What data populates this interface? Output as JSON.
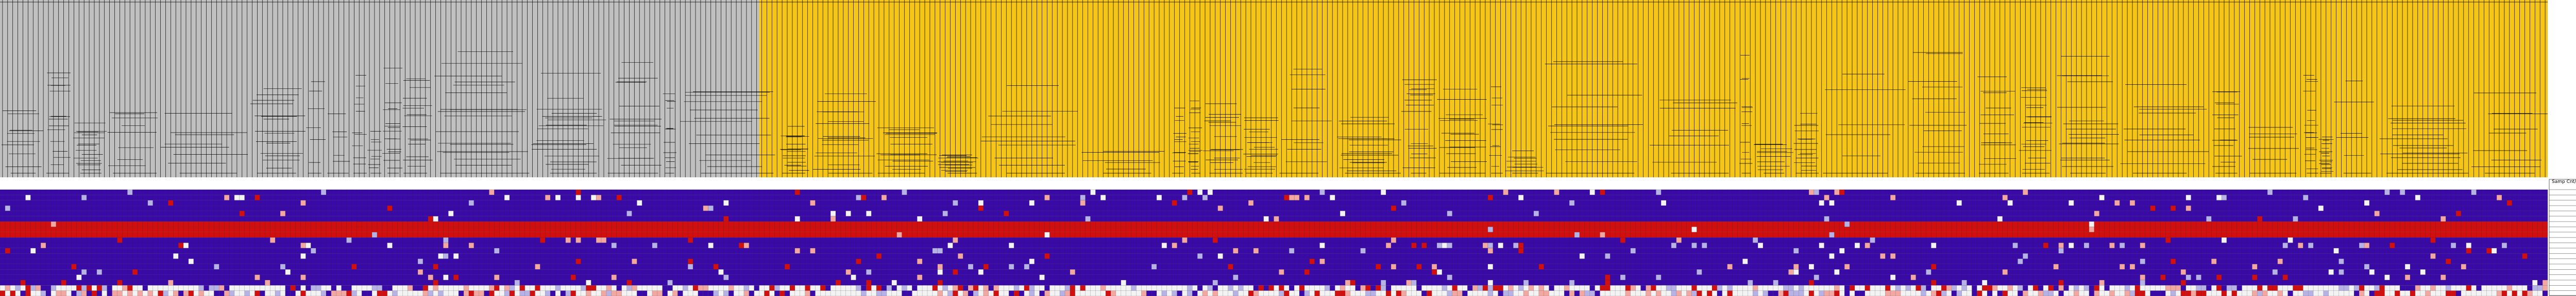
{
  "figure": {
    "type": "heatmap",
    "dendrogram": {
      "left_cluster_color": "#c0c0c0",
      "right_cluster_color": "#f5c518",
      "line_color": "#000000",
      "n_leaves": 500,
      "left_cluster_leaves": 149
    },
    "heatmap": {
      "n_columns": 500,
      "n_rows": 20,
      "palette": {
        "low": "#3a0aa8",
        "mid_low": "#b6b2e6",
        "neutral": "#f3f3f3",
        "mid_high": "#f2a7a1",
        "high": "#d10f0f"
      },
      "row_profiles": [
        {
          "base": "low",
          "speckle": 0.05
        },
        {
          "base": "low",
          "speckle": 0.06
        },
        {
          "base": "low",
          "speckle": 0.05
        },
        {
          "base": "low",
          "speckle": 0.04
        },
        {
          "base": "low",
          "speckle": 0.03
        },
        {
          "base": "low",
          "speckle": 0.03
        },
        {
          "base": "high",
          "speckle": 0.01
        },
        {
          "base": "high",
          "speckle": 0.01
        },
        {
          "base": "high",
          "speckle": 0.01
        },
        {
          "base": "low",
          "speckle": 0.04
        },
        {
          "base": "low",
          "speckle": 0.12
        },
        {
          "base": "low",
          "speckle": 0.05
        },
        {
          "base": "low",
          "speckle": 0.04
        },
        {
          "base": "low",
          "speckle": 0.05
        },
        {
          "base": "low",
          "speckle": 0.06
        },
        {
          "base": "low",
          "speckle": 0.05
        },
        {
          "base": "low",
          "speckle": 0.07
        },
        {
          "base": "low",
          "speckle": 0.1
        },
        {
          "base": "neutral",
          "speckle": 0.6
        },
        {
          "base": "neutral",
          "speckle": 0.7
        }
      ]
    },
    "side_panel": {
      "header": "Samp Cnt/Ser"
    }
  }
}
